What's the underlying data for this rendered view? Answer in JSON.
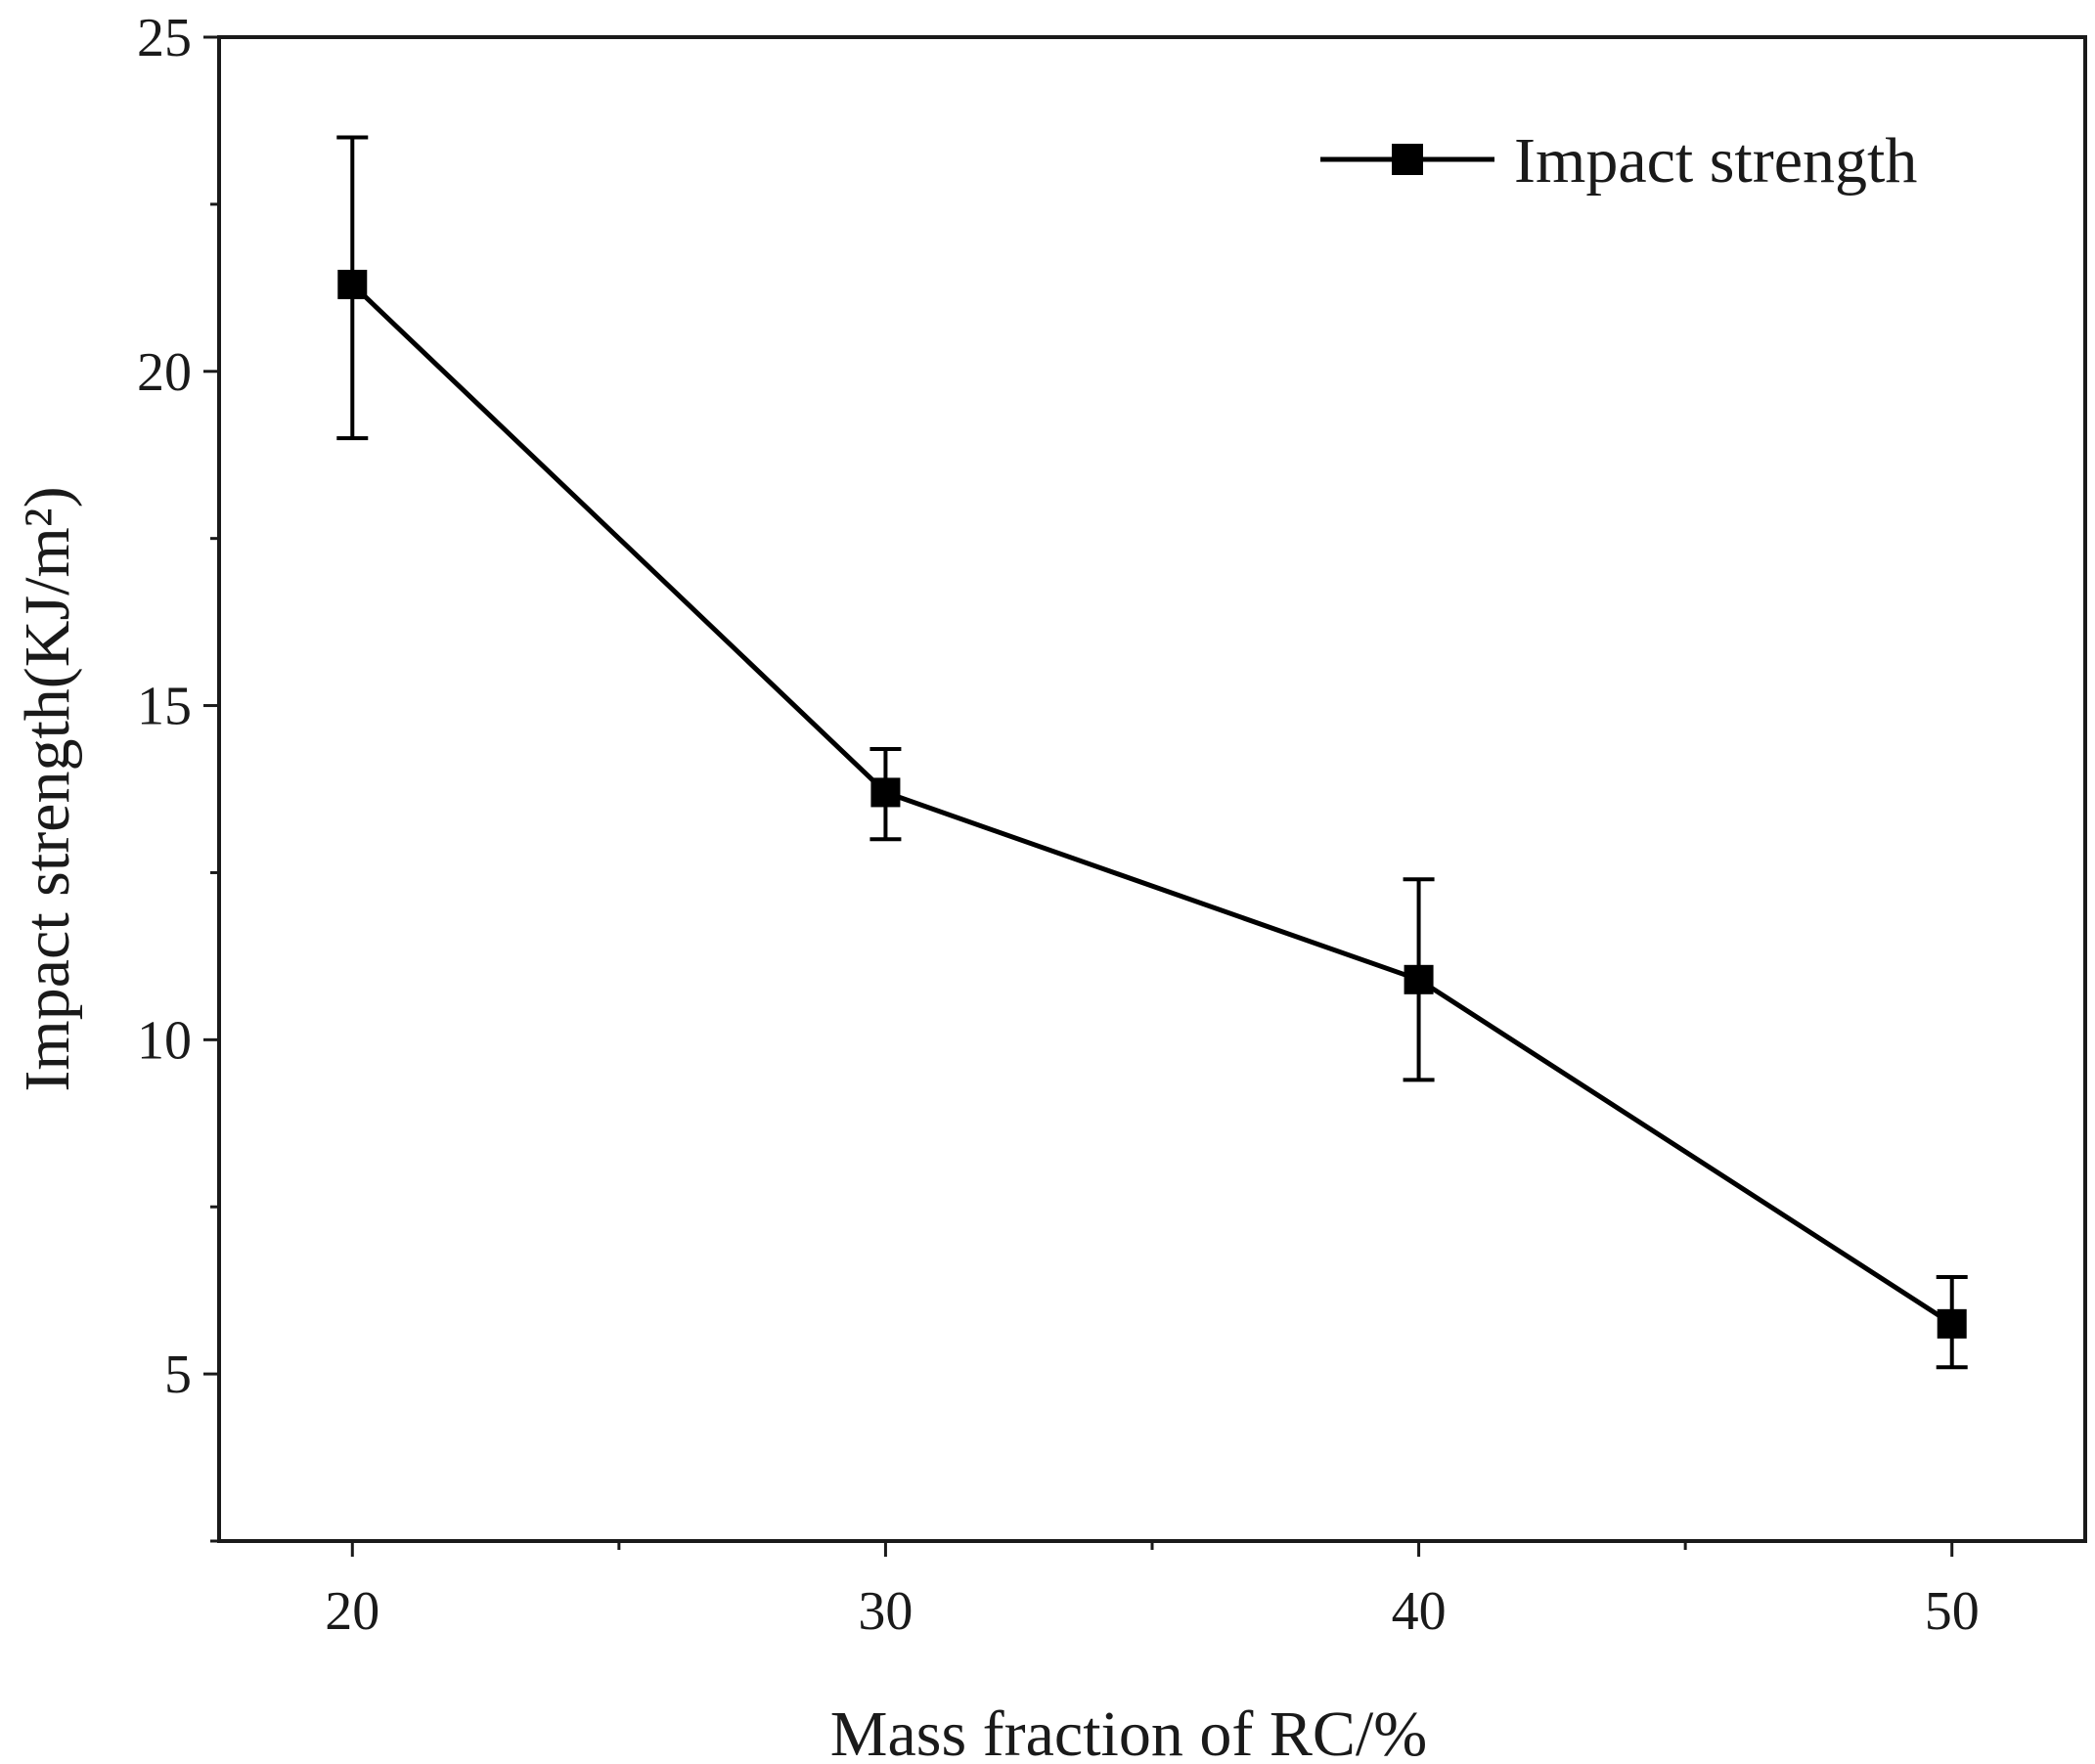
{
  "chart_data": {
    "type": "line",
    "title": "",
    "xlabel": "Mass fraction of RC/%",
    "ylabel": "Impact strength(KJ/m²)",
    "xlim": [
      17.5,
      52.5
    ],
    "ylim": [
      2.5,
      25
    ],
    "x_ticks": [
      20,
      30,
      40,
      50
    ],
    "x_minor_ticks": [
      25,
      35,
      45
    ],
    "y_ticks": [
      5,
      10,
      15,
      20,
      25
    ],
    "y_minor_ticks": [
      2.5,
      7.5,
      12.5,
      17.5,
      22.5
    ],
    "legend_position": "top-right",
    "grid": false,
    "series": [
      {
        "name": "Impact strength",
        "color": "#000000",
        "marker": "square",
        "x": [
          20,
          30,
          40,
          50
        ],
        "y": [
          21.3,
          13.7,
          10.9,
          5.75
        ],
        "error_low": [
          19.0,
          13.0,
          9.4,
          5.1
        ],
        "error_high": [
          23.5,
          14.35,
          12.4,
          6.45
        ]
      }
    ]
  }
}
